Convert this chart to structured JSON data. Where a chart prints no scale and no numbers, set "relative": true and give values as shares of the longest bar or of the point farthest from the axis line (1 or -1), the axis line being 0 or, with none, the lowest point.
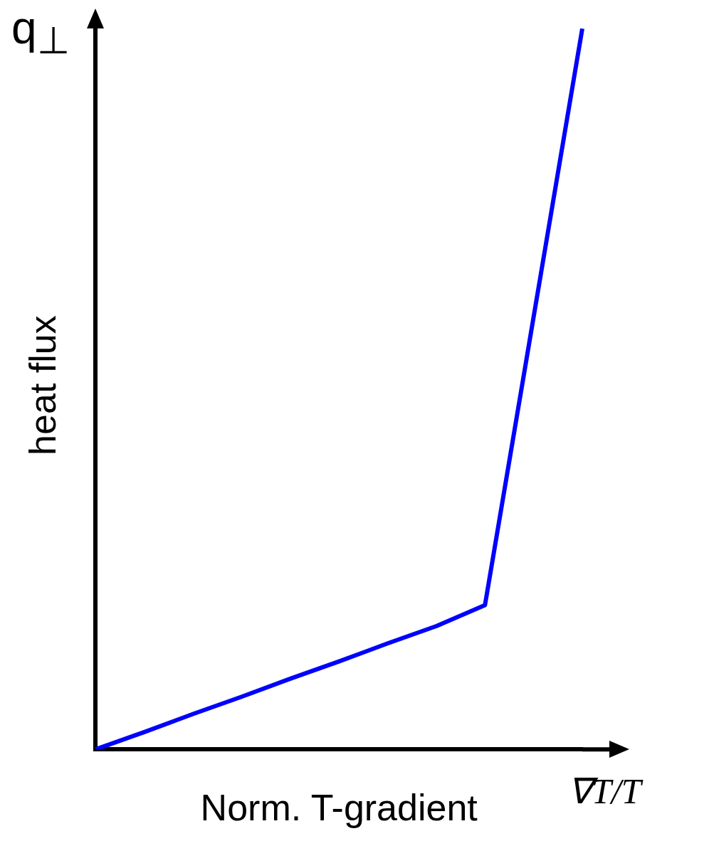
{
  "chart_data": {
    "type": "line",
    "relative": true,
    "xlabel": "Norm. T-gradient",
    "ylabel": "heat flux",
    "annotations": [
      "q$_{⊥}$",
      "∇T/T"
    ],
    "categories": [
      null,
      null,
      null,
      null,
      null,
      null,
      null,
      null,
      null,
      null,
      null
    ],
    "series": [
      {
        "color": "#0000ff",
        "values": [
          0,
          0.024,
          0.049,
          0.073,
          0.098,
          0.122,
          0.147,
          0.171,
          0.2,
          0.6,
          1
        ]
      }
    ],
    "marker": "none",
    "grid": false,
    "legend": false
  }
}
